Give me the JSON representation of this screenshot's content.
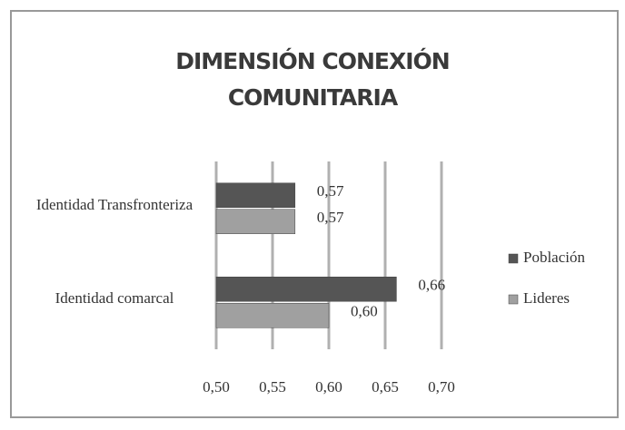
{
  "chart_data": {
    "type": "hbar",
    "title": "DIMENSIÓN CONEXIÓN COMUNITARIA",
    "categories": [
      "Identidad Transfronteriza",
      "Identidad comarcal"
    ],
    "series": [
      {
        "name": "Población",
        "color": "#555555",
        "values": [
          0.57,
          0.66
        ],
        "value_labels": [
          "0,57",
          "0,66"
        ]
      },
      {
        "name": "Lideres",
        "color": "#a0a0a0",
        "values": [
          0.57,
          0.6
        ],
        "value_labels": [
          "0,57",
          "0,60"
        ]
      }
    ],
    "xlim": [
      0.5,
      0.7
    ],
    "xticks": [
      {
        "value": 0.5,
        "label": "0,50"
      },
      {
        "value": 0.55,
        "label": "0,55"
      },
      {
        "value": 0.6,
        "label": "0,60"
      },
      {
        "value": 0.65,
        "label": "0,65"
      },
      {
        "value": 0.7,
        "label": "0,70"
      }
    ],
    "grid": true,
    "legend": "right"
  }
}
